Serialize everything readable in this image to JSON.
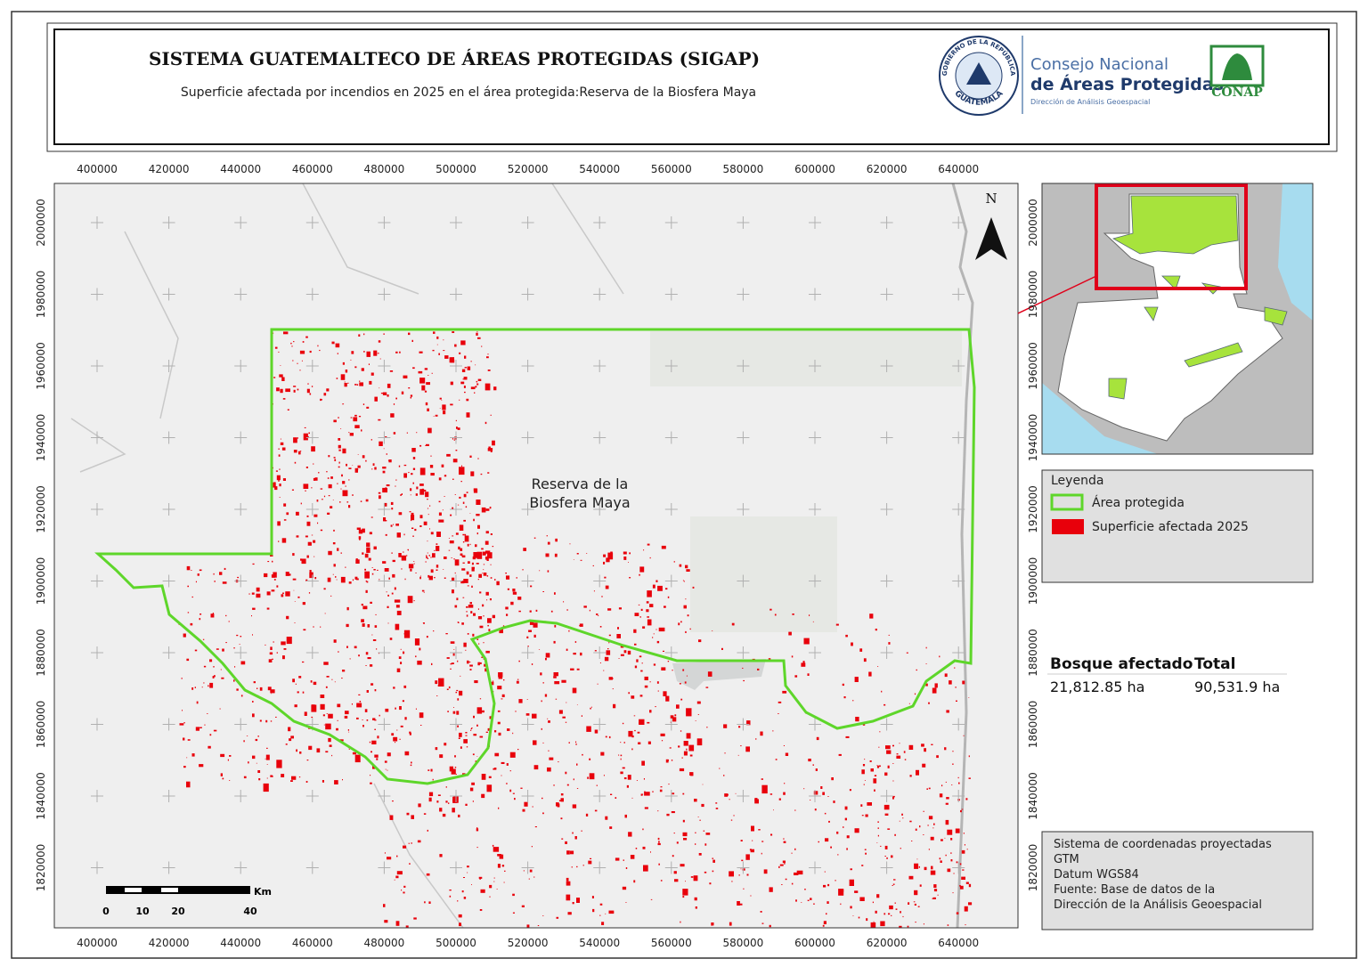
{
  "header": {
    "title": "SISTEMA GUATEMALTECO DE ÁREAS PROTEGIDAS  (SIGAP)",
    "subtitle": "Superficie afectada por incendios en 2025 en el área protegida:Reserva de la Biosfera Maya"
  },
  "logos": {
    "republic": "GOBIERNO DE LA REPÚBLICA",
    "country": "GUATEMALA",
    "council_line1": "Consejo Nacional",
    "council_line2": "de Áreas Protegidas",
    "council_line3": "Dirección de Análisis Geoespacial",
    "conap": "CONAP"
  },
  "map": {
    "label_line1": "Reserva de la",
    "label_line2": "Biosfera Maya",
    "north": "N",
    "x_ticks": [
      400000,
      420000,
      440000,
      460000,
      480000,
      500000,
      520000,
      540000,
      560000,
      580000,
      600000,
      620000,
      640000
    ],
    "y_ticks": [
      2000000,
      1980000,
      1960000,
      1940000,
      1920000,
      1900000,
      1880000,
      1860000,
      1840000,
      1820000
    ],
    "scale": {
      "unit": "Km",
      "labels": [
        "0",
        "10",
        "20",
        "40"
      ]
    }
  },
  "legend": {
    "title": "Leyenda",
    "items": [
      "Área protegida",
      "Superficie afectada 2025"
    ]
  },
  "summary": {
    "headers": [
      "Bosque afectado",
      "Total"
    ],
    "values": [
      "21,812.85 ha",
      "90,531.9 ha"
    ]
  },
  "notes": [
    "Sistema de coordenadas proyectadas",
    "GTM",
    "Datum WGS84",
    "Fuente: Base de datos de la",
    "Dirección de la Análisis Geoespacial"
  ]
}
